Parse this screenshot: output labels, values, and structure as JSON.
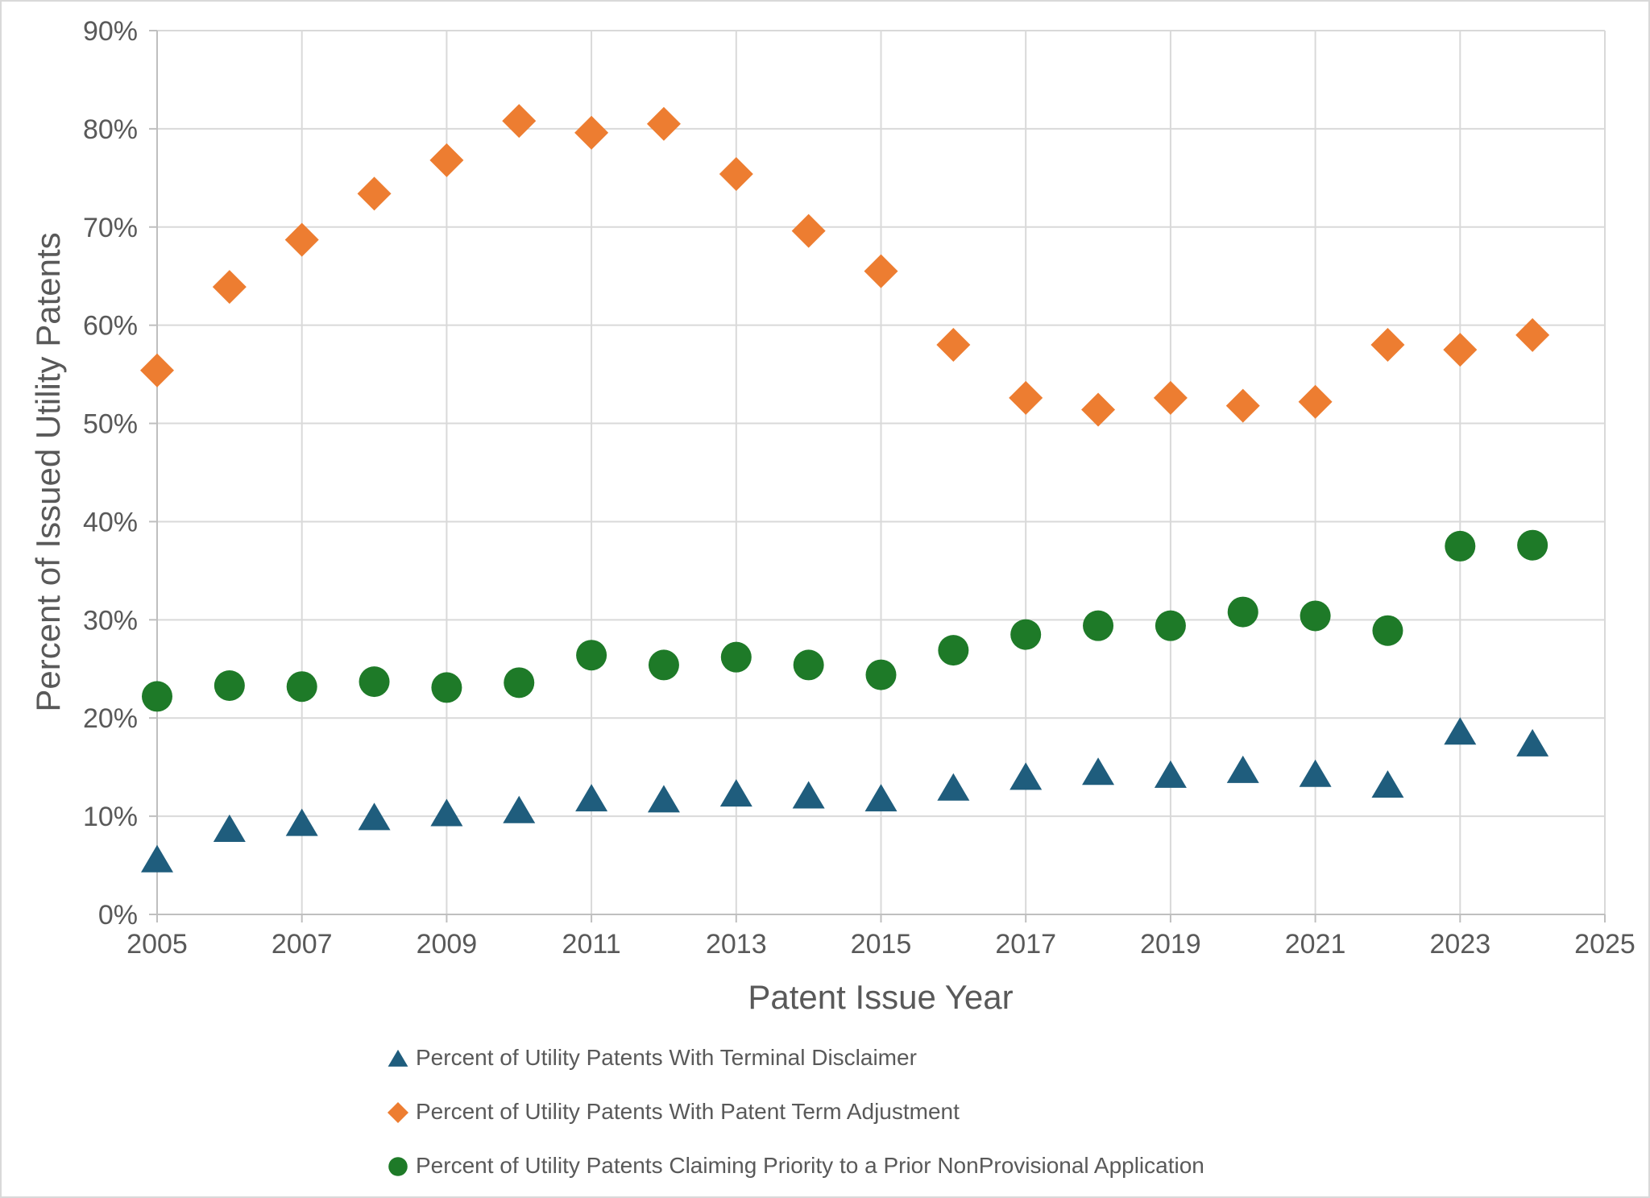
{
  "chart_data": {
    "type": "scatter",
    "title": "",
    "xlabel": "Patent Issue Year",
    "ylabel": "Percent of Issued Utility Patents",
    "x": [
      2005,
      2006,
      2007,
      2008,
      2009,
      2010,
      2011,
      2012,
      2013,
      2014,
      2015,
      2016,
      2017,
      2018,
      2019,
      2020,
      2021,
      2022,
      2023,
      2024
    ],
    "series": [
      {
        "name": "Percent of Utility Patents With Terminal Disclaimer",
        "marker": "triangle",
        "color": "#1F5D7D",
        "values": [
          5.6,
          8.7,
          9.3,
          9.9,
          10.3,
          10.6,
          11.8,
          11.7,
          12.3,
          12.1,
          11.8,
          12.9,
          14.0,
          14.5,
          14.2,
          14.7,
          14.3,
          13.2,
          18.6,
          17.4
        ]
      },
      {
        "name": "Percent of Utility Patents With Patent Term Adjustment",
        "marker": "diamond",
        "color": "#ED7D31",
        "values": [
          55.4,
          63.9,
          68.7,
          73.4,
          76.8,
          80.8,
          79.6,
          80.5,
          75.4,
          69.6,
          65.5,
          58.0,
          52.6,
          51.4,
          52.6,
          51.8,
          52.2,
          58.0,
          57.5,
          59.0
        ]
      },
      {
        "name": "Percent of Utility Patents Claiming Priority to a Prior NonProvisional Application",
        "marker": "circle",
        "color": "#1E7A28",
        "values": [
          22.2,
          23.3,
          23.2,
          23.7,
          23.1,
          23.6,
          26.4,
          25.4,
          26.2,
          25.4,
          24.4,
          26.9,
          28.5,
          29.4,
          29.4,
          30.8,
          30.4,
          28.9,
          37.5,
          37.6
        ]
      }
    ],
    "x_axis": {
      "min": 2005,
      "max": 2025,
      "tick_step": 2,
      "tick_labels": [
        "2005",
        "2007",
        "2009",
        "2011",
        "2013",
        "2015",
        "2017",
        "2019",
        "2021",
        "2023",
        "2025"
      ]
    },
    "y_axis": {
      "min": 0,
      "max": 90,
      "tick_step": 10,
      "tick_labels": [
        "0%",
        "10%",
        "20%",
        "30%",
        "40%",
        "50%",
        "60%",
        "70%",
        "80%",
        "90%"
      ]
    },
    "grid": true,
    "legend_position": "bottom",
    "colors": {
      "grid": "#D9D9D9",
      "axis": "#BFBFBF",
      "text": "#595959"
    }
  }
}
